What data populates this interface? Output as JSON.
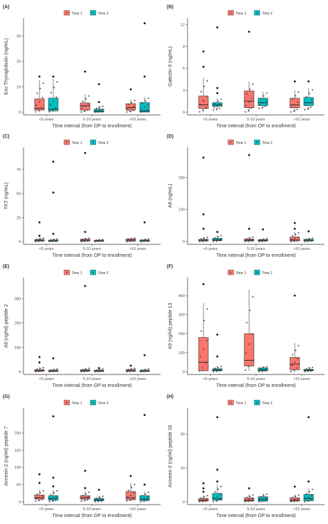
{
  "colors": {
    "time1": "#F8766D",
    "time2": "#00BFC4",
    "axis": "#333333",
    "point": "#444444"
  },
  "chart_data": [
    {
      "panel_label": "(A)",
      "type": "boxplot",
      "categories": [
        "<5 years",
        "5-10 years",
        ">10 years"
      ],
      "xlabel": "Time interval (from OP to enrollment)",
      "ylabel": "Exo Thyroglobulin (ng/mL)",
      "ylim": [
        0,
        36
      ],
      "yticks": [
        0,
        10,
        20,
        30
      ],
      "legend": [
        "Time 1",
        "Time 2"
      ],
      "legend_position": "top-center",
      "series": [
        {
          "name": "Time 1",
          "boxes": [
            {
              "q1": 0.8,
              "med": 1.5,
              "q3": 5.2,
              "lo": 0,
              "hi": 12.5,
              "out": [
                14
              ]
            },
            {
              "q1": 0.8,
              "med": 2.5,
              "q3": 3.6,
              "lo": 0,
              "hi": 7,
              "out": [
                16
              ]
            },
            {
              "q1": 0.8,
              "med": 1.8,
              "q3": 3.3,
              "lo": 0,
              "hi": 5,
              "out": [
                9
              ]
            }
          ]
        },
        {
          "name": "Time 2",
          "boxes": [
            {
              "q1": 0.5,
              "med": 1.2,
              "q3": 5.5,
              "lo": 0,
              "hi": 13,
              "out": [
                14
              ]
            },
            {
              "q1": 0,
              "med": 0.3,
              "q3": 1.2,
              "lo": 0,
              "hi": 2.5,
              "out": [
                4,
                11
              ]
            },
            {
              "q1": 0,
              "med": 0.5,
              "q3": 3.8,
              "lo": 0,
              "hi": 6,
              "out": [
                14,
                35
              ]
            }
          ]
        }
      ]
    },
    {
      "panel_label": "(B)",
      "type": "boxplot",
      "categories": [
        "<5 years",
        "5-10 years",
        ">10 years"
      ],
      "xlabel": "Time interval (from OP to enrollment)",
      "ylabel": "Galectin-3 (ng/mL)",
      "ylim": [
        0,
        12.5
      ],
      "yticks": [
        0,
        3,
        6,
        9,
        12
      ],
      "legend": [
        "Time 1",
        "Time 2"
      ],
      "legend_position": "top-center",
      "series": [
        {
          "name": "Time 1",
          "boxes": [
            {
              "q1": 0.5,
              "med": 1.0,
              "q3": 2.2,
              "lo": 0,
              "hi": 4.7,
              "out": [
                6.2,
                8.3
              ]
            },
            {
              "q1": 0.6,
              "med": 1.5,
              "q3": 2.9,
              "lo": 0,
              "hi": 4.2,
              "out": [
                11
              ]
            },
            {
              "q1": 0.6,
              "med": 1.0,
              "q3": 1.9,
              "lo": 0,
              "hi": 3,
              "out": [
                4.2
              ]
            }
          ]
        },
        {
          "name": "Time 2",
          "boxes": [
            {
              "q1": 0.8,
              "med": 1.0,
              "q3": 1.3,
              "lo": 0.3,
              "hi": 1.9,
              "out": [
                2.6,
                3.3,
                11.6
              ]
            },
            {
              "q1": 0.9,
              "med": 1.3,
              "q3": 1.9,
              "lo": 0.5,
              "hi": 2.8,
              "out": []
            },
            {
              "q1": 0.9,
              "med": 1.3,
              "q3": 2.0,
              "lo": 0.3,
              "hi": 3.3,
              "out": [
                4.2
              ]
            }
          ]
        }
      ]
    },
    {
      "panel_label": "(C)",
      "type": "boxplot",
      "categories": [
        "<5 years",
        "5-10 years",
        ">10 years"
      ],
      "xlabel": "Time interval (from OP to enrollment)",
      "ylabel": "TKT (ng/mL)",
      "ylim": [
        0,
        95
      ],
      "yticks": [
        0,
        25,
        50,
        75
      ],
      "legend": [
        "Time 1",
        "Time 2"
      ],
      "legend_position": "top-center",
      "series": [
        {
          "name": "Time 1",
          "boxes": [
            {
              "q1": 0.5,
              "med": 1.2,
              "q3": 2.2,
              "lo": 0,
              "hi": 4,
              "out": [
                6,
                20
              ]
            },
            {
              "q1": 0.5,
              "med": 1.3,
              "q3": 2.5,
              "lo": 0,
              "hi": 4,
              "out": [
                10,
                92
              ]
            },
            {
              "q1": 0.5,
              "med": 1.5,
              "q3": 2.8,
              "lo": 0,
              "hi": 4,
              "out": []
            }
          ]
        },
        {
          "name": "Time 2",
          "boxes": [
            {
              "q1": 0.3,
              "med": 0.8,
              "q3": 1.5,
              "lo": 0,
              "hi": 3,
              "out": [
                8,
                51,
                83
              ]
            },
            {
              "q1": 0.3,
              "med": 0.7,
              "q3": 1.4,
              "lo": 0,
              "hi": 2.5,
              "out": []
            },
            {
              "q1": 0.3,
              "med": 0.8,
              "q3": 1.6,
              "lo": 0,
              "hi": 3,
              "out": [
                20
              ]
            }
          ]
        }
      ]
    },
    {
      "panel_label": "(D)",
      "type": "boxplot",
      "categories": [
        "<5 years",
        "5-10 years",
        ">10 years"
      ],
      "xlabel": "Time interval (from OP to enrollment)",
      "ylabel": "A8 (ng/mL)",
      "ylim": [
        0,
        285
      ],
      "yticks": [
        0,
        100,
        200
      ],
      "legend": [
        "Time 1",
        "Time 2"
      ],
      "legend_position": "top-center",
      "series": [
        {
          "name": "Time 1",
          "boxes": [
            {
              "q1": 2,
              "med": 4,
              "q3": 7,
              "lo": 0,
              "hi": 14,
              "out": [
                40,
                85,
                262
              ]
            },
            {
              "q1": 2,
              "med": 4,
              "q3": 8,
              "lo": 0,
              "hi": 15,
              "out": [
                40,
                270
              ]
            },
            {
              "q1": 2,
              "med": 5,
              "q3": 14,
              "lo": 0,
              "hi": 30,
              "out": [
                40,
                58
              ]
            }
          ]
        },
        {
          "name": "Time 2",
          "boxes": [
            {
              "q1": 3,
              "med": 5,
              "q3": 10,
              "lo": 0,
              "hi": 20,
              "out": [
                30
              ]
            },
            {
              "q1": 2,
              "med": 4,
              "q3": 6,
              "lo": 0,
              "hi": 10,
              "out": [
                38
              ]
            },
            {
              "q1": 2,
              "med": 4,
              "q3": 7,
              "lo": 0,
              "hi": 12,
              "out": [
                32
              ]
            }
          ]
        }
      ]
    },
    {
      "panel_label": "(E)",
      "type": "boxplot",
      "categories": [
        "<5 years",
        "5-10 years",
        ">10 years"
      ],
      "xlabel": "Time interval (from OP to enrollment)",
      "ylabel": "A9 (ng/ml) peptide 2",
      "ylim": [
        0,
        375
      ],
      "yticks": [
        0,
        100,
        200,
        300
      ],
      "legend": [
        "Time 1",
        "Time 2"
      ],
      "legend_position": "top-center",
      "series": [
        {
          "name": "Time 1",
          "boxes": [
            {
              "q1": 2,
              "med": 4,
              "q3": 8,
              "lo": 0,
              "hi": 18,
              "out": [
                38,
                60
              ]
            },
            {
              "q1": 2,
              "med": 4,
              "q3": 8,
              "lo": 0,
              "hi": 15,
              "out": [
                352
              ]
            },
            {
              "q1": 2,
              "med": 4,
              "q3": 9,
              "lo": 0,
              "hi": 15,
              "out": [
                25
              ]
            }
          ]
        },
        {
          "name": "Time 2",
          "boxes": [
            {
              "q1": 1,
              "med": 3,
              "q3": 6,
              "lo": 0,
              "hi": 12,
              "out": [
                55
              ]
            },
            {
              "q1": 1,
              "med": 3,
              "q3": 6,
              "lo": 0,
              "hi": 12,
              "out": [
                15
              ]
            },
            {
              "q1": 1,
              "med": 3,
              "q3": 6,
              "lo": 0,
              "hi": 12,
              "out": [
                68
              ]
            }
          ]
        }
      ]
    },
    {
      "panel_label": "(F)",
      "type": "boxplot",
      "categories": [
        "<5 years",
        "5-10 years",
        ">10 years"
      ],
      "xlabel": "Time interval (from OP to enrollment)",
      "ylabel": "A9 (ng/ml) peptide 13",
      "ylim": [
        0,
        480
      ],
      "yticks": [
        0,
        100,
        200,
        300,
        400
      ],
      "legend": [
        "Time 1",
        "Time 2"
      ],
      "legend_position": "top-center",
      "series": [
        {
          "name": "Time 1",
          "boxes": [
            {
              "q1": 5,
              "med": 50,
              "q3": 180,
              "lo": 0,
              "hi": 360,
              "out": [
                460
              ]
            },
            {
              "q1": 30,
              "med": 60,
              "q3": 200,
              "lo": 5,
              "hi": 430,
              "out": []
            },
            {
              "q1": 10,
              "med": 40,
              "q3": 75,
              "lo": 0,
              "hi": 150,
              "out": [
                400
              ]
            }
          ]
        },
        {
          "name": "Time 2",
          "boxes": [
            {
              "q1": 5,
              "med": 10,
              "q3": 15,
              "lo": 0,
              "hi": 30,
              "out": [
                80,
                195
              ]
            },
            {
              "q1": 5,
              "med": 10,
              "q3": 20,
              "lo": 0,
              "hi": 30,
              "out": []
            },
            {
              "q1": 5,
              "med": 8,
              "q3": 12,
              "lo": 0,
              "hi": 25,
              "out": []
            }
          ]
        }
      ]
    },
    {
      "panel_label": "(G)",
      "type": "boxplot",
      "categories": [
        "<5 years",
        "5-10 years",
        ">10 years"
      ],
      "xlabel": "Time interval (from OP to enrollment)",
      "ylabel": "Annexin-2 (ng/ml) peptide 7",
      "ylim": [
        0,
        265
      ],
      "yticks": [
        0,
        50,
        100,
        150,
        200
      ],
      "legend": [
        "Time 1",
        "Time 2"
      ],
      "legend_position": "top-center",
      "series": [
        {
          "name": "Time 1",
          "boxes": [
            {
              "q1": 8,
              "med": 12,
              "q3": 20,
              "lo": 2,
              "hi": 35,
              "out": [
                55,
                80
              ]
            },
            {
              "q1": 8,
              "med": 12,
              "q3": 18,
              "lo": 2,
              "hi": 30,
              "out": [
                40,
                90
              ]
            },
            {
              "q1": 6,
              "med": 12,
              "q3": 30,
              "lo": 2,
              "hi": 55,
              "out": [
                75
              ]
            }
          ]
        },
        {
          "name": "Time 2",
          "boxes": [
            {
              "q1": 5,
              "med": 10,
              "q3": 18,
              "lo": 0,
              "hi": 35,
              "out": [
                45,
                70,
                248
              ]
            },
            {
              "q1": 3,
              "med": 6,
              "q3": 10,
              "lo": 0,
              "hi": 18,
              "out": [
                35
              ]
            },
            {
              "q1": 4,
              "med": 8,
              "q3": 18,
              "lo": 0,
              "hi": 30,
              "out": [
                50,
                252
              ]
            }
          ]
        }
      ]
    },
    {
      "panel_label": "(H)",
      "type": "boxplot",
      "categories": [
        "<5 years",
        "5-10 years",
        ">10 years"
      ],
      "xlabel": "Time interval (from OP to enrollment)",
      "ylabel": "Annexin-2 (ng/ml) peptide 18",
      "ylim": [
        0,
        27
      ],
      "yticks": [
        0,
        10,
        20
      ],
      "legend": [
        "Time 1",
        "Time 2"
      ],
      "legend_position": "top-center",
      "series": [
        {
          "name": "Time 1",
          "boxes": [
            {
              "q1": 0.2,
              "med": 0.5,
              "q3": 1.0,
              "lo": 0,
              "hi": 2,
              "out": [
                3,
                4,
                5.5
              ]
            },
            {
              "q1": 0.2,
              "med": 0.5,
              "q3": 1.2,
              "lo": 0,
              "hi": 2.2,
              "out": [
                4
              ]
            },
            {
              "q1": 0.2,
              "med": 0.5,
              "q3": 1.2,
              "lo": 0,
              "hi": 2.2,
              "out": [
                4.5
              ]
            }
          ]
        },
        {
          "name": "Time 2",
          "boxes": [
            {
              "q1": 0.5,
              "med": 1.0,
              "q3": 2.5,
              "lo": 0,
              "hi": 5,
              "out": [
                6,
                9.5,
                25
              ]
            },
            {
              "q1": 0.2,
              "med": 0.8,
              "q3": 1.5,
              "lo": 0,
              "hi": 2.5,
              "out": []
            },
            {
              "q1": 0.3,
              "med": 1.0,
              "q3": 2.2,
              "lo": 0,
              "hi": 4,
              "out": [
                6,
                25
              ]
            }
          ]
        }
      ]
    }
  ]
}
